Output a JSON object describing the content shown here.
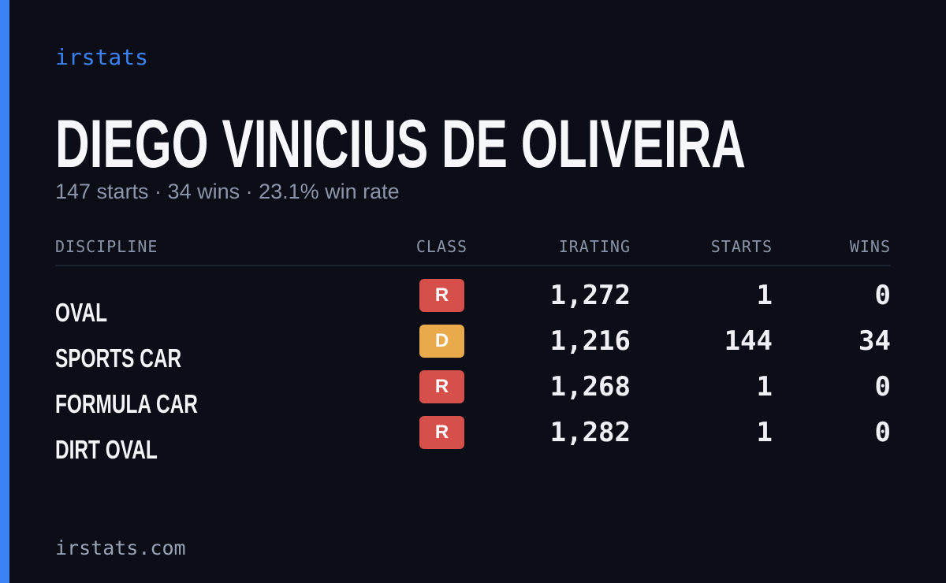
{
  "brand": "irstats",
  "title": "DIEGO VINICIUS DE OLIVEIRA",
  "summary": "147 starts · 34 wins · 23.1% win rate",
  "table": {
    "headers": [
      "DISCIPLINE",
      "CLASS",
      "IRATING",
      "STARTS",
      "WINS"
    ],
    "rows": [
      {
        "discipline": "OVAL",
        "class": "R",
        "class_color": "#d64f4b",
        "irating": "1,272",
        "starts": "1",
        "wins": "0"
      },
      {
        "discipline": "SPORTS CAR",
        "class": "D",
        "class_color": "#e9aa4c",
        "irating": "1,216",
        "starts": "144",
        "wins": "34"
      },
      {
        "discipline": "FORMULA CAR",
        "class": "R",
        "class_color": "#d64f4b",
        "irating": "1,268",
        "starts": "1",
        "wins": "0"
      },
      {
        "discipline": "DIRT OVAL",
        "class": "R",
        "class_color": "#d64f4b",
        "irating": "1,282",
        "starts": "1",
        "wins": "0"
      }
    ]
  },
  "footer": "irstats.com"
}
